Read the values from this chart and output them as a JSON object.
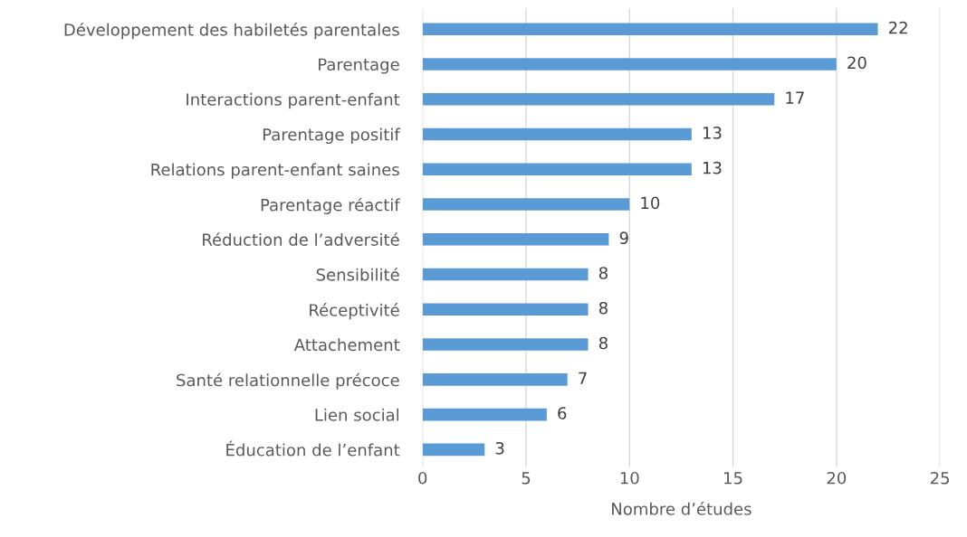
{
  "chart_data": {
    "type": "bar",
    "orientation": "horizontal",
    "xlabel": "Nombre d’études",
    "categories": [
      "Développement des habiletés parentales",
      "Parentage",
      "Interactions parent-enfant",
      "Parentage positif",
      "Relations parent-enfant saines",
      "Parentage réactif",
      "Réduction de l’adversité",
      "Sensibilité",
      "Réceptivité",
      "Attachement",
      "Santé relationnelle précoce",
      "Lien social",
      "Éducation de l’enfant"
    ],
    "values": [
      22,
      20,
      17,
      13,
      13,
      10,
      9,
      8,
      8,
      8,
      7,
      6,
      3
    ],
    "color": "#5b9bd5",
    "xlim": [
      0,
      25
    ],
    "xticks": [
      0,
      5,
      10,
      15,
      20,
      25
    ],
    "grid": "x",
    "data_labels": true
  }
}
